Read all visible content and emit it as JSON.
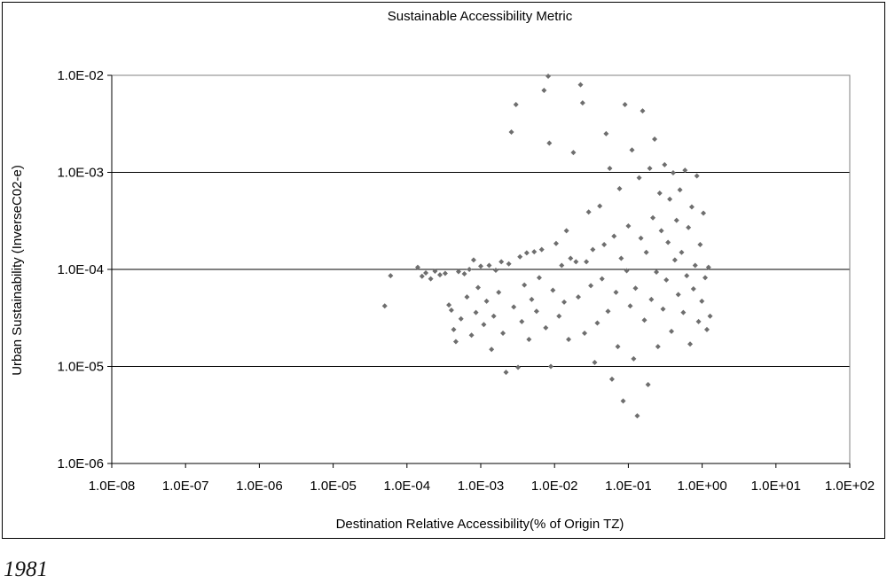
{
  "caption": "1981",
  "chart_data": {
    "type": "scatter",
    "title": "Sustainable Accessibility Metric",
    "xlabel": "Destination Relative Accessibility(% of Origin TZ)",
    "ylabel": "Urban Sustainability (InverseC02-e)",
    "x_scale": "log",
    "y_scale": "log",
    "xlim": [
      1e-08,
      100
    ],
    "ylim": [
      1e-06,
      0.01
    ],
    "x_ticks": [
      "1.0E-08",
      "1.0E-07",
      "1.0E-06",
      "1.0E-05",
      "1.0E-04",
      "1.0E-03",
      "1.0E-02",
      "1.0E-01",
      "1.0E+00",
      "1.0E+01",
      "1.0E+02"
    ],
    "y_ticks": [
      "1.0E-06",
      "1.0E-05",
      "1.0E-04",
      "1.0E-03",
      "1.0E-02"
    ],
    "grid": "horizontal major gridlines",
    "legend": "none",
    "marker_color": "#6e6e6e",
    "series": [
      {
        "points": [
          [
            5e-05,
            4.2e-05
          ],
          [
            6e-05,
            8.6e-05
          ],
          [
            0.00014,
            0.000105
          ],
          [
            0.00016,
            8.5e-05
          ],
          [
            0.00018,
            9.2e-05
          ],
          [
            0.00021,
            8e-05
          ],
          [
            0.00024,
            9.6e-05
          ],
          [
            0.00028,
            8.8e-05
          ],
          [
            0.00033,
            9.1e-05
          ],
          [
            0.00037,
            4.3e-05
          ],
          [
            0.0004,
            3.8e-05
          ],
          [
            0.00043,
            2.4e-05
          ],
          [
            0.00046,
            1.8e-05
          ],
          [
            0.0005,
            9.5e-05
          ],
          [
            0.00054,
            3.1e-05
          ],
          [
            0.0006,
            9e-05
          ],
          [
            0.00065,
            5.2e-05
          ],
          [
            0.0007,
            0.0001
          ],
          [
            0.00075,
            2.1e-05
          ],
          [
            0.0008,
            0.000125
          ],
          [
            0.00086,
            3.6e-05
          ],
          [
            0.00092,
            6.5e-05
          ],
          [
            0.001,
            0.000108
          ],
          [
            0.0011,
            2.7e-05
          ],
          [
            0.0012,
            4.7e-05
          ],
          [
            0.0013,
            0.00011
          ],
          [
            0.0014,
            1.5e-05
          ],
          [
            0.0015,
            3.3e-05
          ],
          [
            0.0016,
            9.8e-05
          ],
          [
            0.00175,
            5.8e-05
          ],
          [
            0.0019,
            0.00012
          ],
          [
            0.002,
            2.2e-05
          ],
          [
            0.0022,
            8.7e-06
          ],
          [
            0.0024,
            0.000114
          ],
          [
            0.0026,
            0.0026
          ],
          [
            0.0028,
            4.1e-05
          ],
          [
            0.003,
            0.005
          ],
          [
            0.0032,
            9.8e-06
          ],
          [
            0.0034,
            0.000135
          ],
          [
            0.0036,
            2.9e-05
          ],
          [
            0.0039,
            6.9e-05
          ],
          [
            0.0042,
            0.000148
          ],
          [
            0.0045,
            1.9e-05
          ],
          [
            0.0049,
            4.9e-05
          ],
          [
            0.0053,
            0.000152
          ],
          [
            0.0057,
            3.7e-05
          ],
          [
            0.0062,
            8.2e-05
          ],
          [
            0.0067,
            0.00016
          ],
          [
            0.0072,
            0.007
          ],
          [
            0.0076,
            2.5e-05
          ],
          [
            0.0082,
            0.0098
          ],
          [
            0.0085,
            0.002
          ],
          [
            0.0089,
            1e-05
          ],
          [
            0.0095,
            6.1e-05
          ],
          [
            0.0105,
            0.000185
          ],
          [
            0.0115,
            3.3e-05
          ],
          [
            0.0125,
            0.00011
          ],
          [
            0.0135,
            4.6e-05
          ],
          [
            0.0145,
            0.00025
          ],
          [
            0.0155,
            1.9e-05
          ],
          [
            0.0165,
            0.00013
          ],
          [
            0.018,
            0.0016
          ],
          [
            0.0195,
            0.00012
          ],
          [
            0.021,
            5.2e-05
          ],
          [
            0.0225,
            0.008
          ],
          [
            0.024,
            0.0052
          ],
          [
            0.0255,
            2.2e-05
          ],
          [
            0.027,
            0.00012
          ],
          [
            0.029,
            0.00039
          ],
          [
            0.031,
            6.8e-05
          ],
          [
            0.033,
            0.00016
          ],
          [
            0.035,
            1.1e-05
          ],
          [
            0.038,
            2.8e-05
          ],
          [
            0.041,
            0.00045
          ],
          [
            0.044,
            8e-05
          ],
          [
            0.047,
            0.00018
          ],
          [
            0.05,
            0.0025
          ],
          [
            0.053,
            3.7e-05
          ],
          [
            0.056,
            0.0011
          ],
          [
            0.06,
            7.4e-06
          ],
          [
            0.064,
            0.00022
          ],
          [
            0.068,
            5.8e-05
          ],
          [
            0.072,
            1.6e-05
          ],
          [
            0.076,
            0.00068
          ],
          [
            0.08,
            0.00013
          ],
          [
            0.085,
            4.4e-06
          ],
          [
            0.09,
            0.005
          ],
          [
            0.095,
            9.7e-05
          ],
          [
            0.1,
            0.00028
          ],
          [
            0.106,
            4.2e-05
          ],
          [
            0.112,
            0.0017
          ],
          [
            0.118,
            1.2e-05
          ],
          [
            0.125,
            6.4e-05
          ],
          [
            0.132,
            3.1e-06
          ],
          [
            0.14,
            0.00088
          ],
          [
            0.148,
            0.00021
          ],
          [
            0.156,
            0.0043
          ],
          [
            0.165,
            3e-05
          ],
          [
            0.175,
            0.00015
          ],
          [
            0.185,
            6.5e-06
          ],
          [
            0.195,
            0.0011
          ],
          [
            0.205,
            4.9e-05
          ],
          [
            0.215,
            0.00034
          ],
          [
            0.227,
            0.0022
          ],
          [
            0.24,
            9.4e-05
          ],
          [
            0.252,
            1.6e-05
          ],
          [
            0.266,
            0.00061
          ],
          [
            0.28,
            0.00025
          ],
          [
            0.295,
            3.9e-05
          ],
          [
            0.31,
            0.0012
          ],
          [
            0.327,
            7.8e-05
          ],
          [
            0.345,
            0.00019
          ],
          [
            0.364,
            0.00053
          ],
          [
            0.384,
            2.3e-05
          ],
          [
            0.405,
            0.00099
          ],
          [
            0.427,
            0.000125
          ],
          [
            0.45,
            0.00032
          ],
          [
            0.475,
            5.5e-05
          ],
          [
            0.5,
            0.00066
          ],
          [
            0.527,
            0.00015
          ],
          [
            0.556,
            3.6e-05
          ],
          [
            0.586,
            0.00105
          ],
          [
            0.618,
            8.6e-05
          ],
          [
            0.652,
            0.00027
          ],
          [
            0.687,
            1.7e-05
          ],
          [
            0.724,
            0.00044
          ],
          [
            0.763,
            6.3e-05
          ],
          [
            0.805,
            0.00011
          ],
          [
            0.848,
            0.00092
          ],
          [
            0.894,
            2.9e-05
          ],
          [
            0.94,
            0.00018
          ],
          [
            0.99,
            4.7e-05
          ],
          [
            1.04,
            0.00038
          ],
          [
            1.1,
            8.2e-05
          ],
          [
            1.16,
            2.4e-05
          ],
          [
            1.22,
            0.000105
          ],
          [
            1.28,
            3.3e-05
          ]
        ]
      }
    ]
  }
}
